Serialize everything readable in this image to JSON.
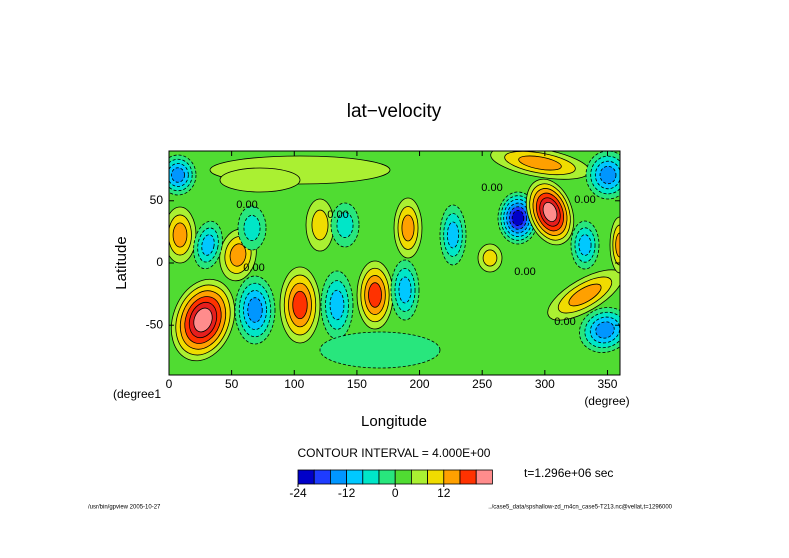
{
  "chart_data": {
    "type": "contour",
    "title": "lat−velocity",
    "xlabel": "Longitude",
    "xunit": "(degree)",
    "ylabel": "Latitude",
    "yunit": "(degree1",
    "xlim": [
      0,
      360
    ],
    "xticks": [
      0,
      50,
      100,
      150,
      200,
      250,
      300,
      350
    ],
    "ylim": [
      -90,
      90
    ],
    "yticks": [
      -50,
      0,
      50
    ],
    "contour_interval_label": "CONTOUR INTERVAL = 4.000E+00",
    "time_label": "t=1.296e+06 sec",
    "contour_labels": [
      "0.00",
      "0.00",
      "0.00",
      "0.00",
      "0.00",
      "0.00",
      "0.00"
    ],
    "colorbar": {
      "ticks": [
        -24,
        -12,
        0,
        12
      ],
      "colors": [
        "#0000c8",
        "#1e3cff",
        "#0096ff",
        "#00c8ff",
        "#00e6c8",
        "#28e67d",
        "#50dc32",
        "#aaf032",
        "#f0dc00",
        "#ffa000",
        "#ff3200",
        "#ff8c8c"
      ]
    },
    "footer_left": "/usr/bin/gpview  2005-10-27",
    "footer_right": "../case5_data/spshallow-zd_m4cn_case5-T213.nc@vellat,t=1296000"
  }
}
